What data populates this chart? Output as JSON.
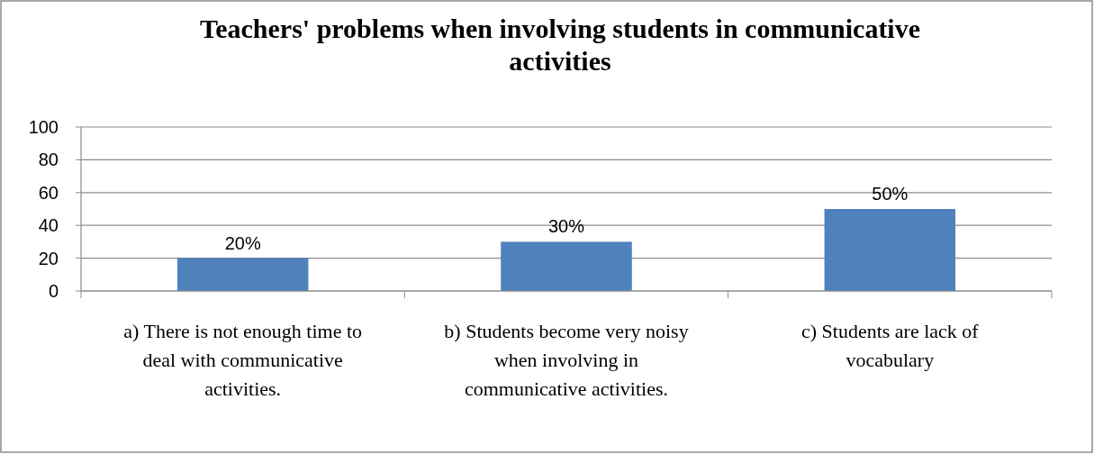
{
  "chart_data": {
    "type": "bar",
    "title": "Teachers' problems when involving students in communicative activities",
    "categories": [
      "a) There is not enough time to deal with communicative activities.",
      "b) Students become very noisy when involving in communicative activities.",
      "c) Students are lack of vocabulary"
    ],
    "values": [
      20,
      30,
      50
    ],
    "value_labels": [
      "20%",
      "30%",
      "50%"
    ],
    "color": "#4f81bd",
    "ylim": [
      0,
      100
    ],
    "yticks": [
      0,
      20,
      40,
      60,
      80,
      100
    ],
    "grid": "y"
  }
}
